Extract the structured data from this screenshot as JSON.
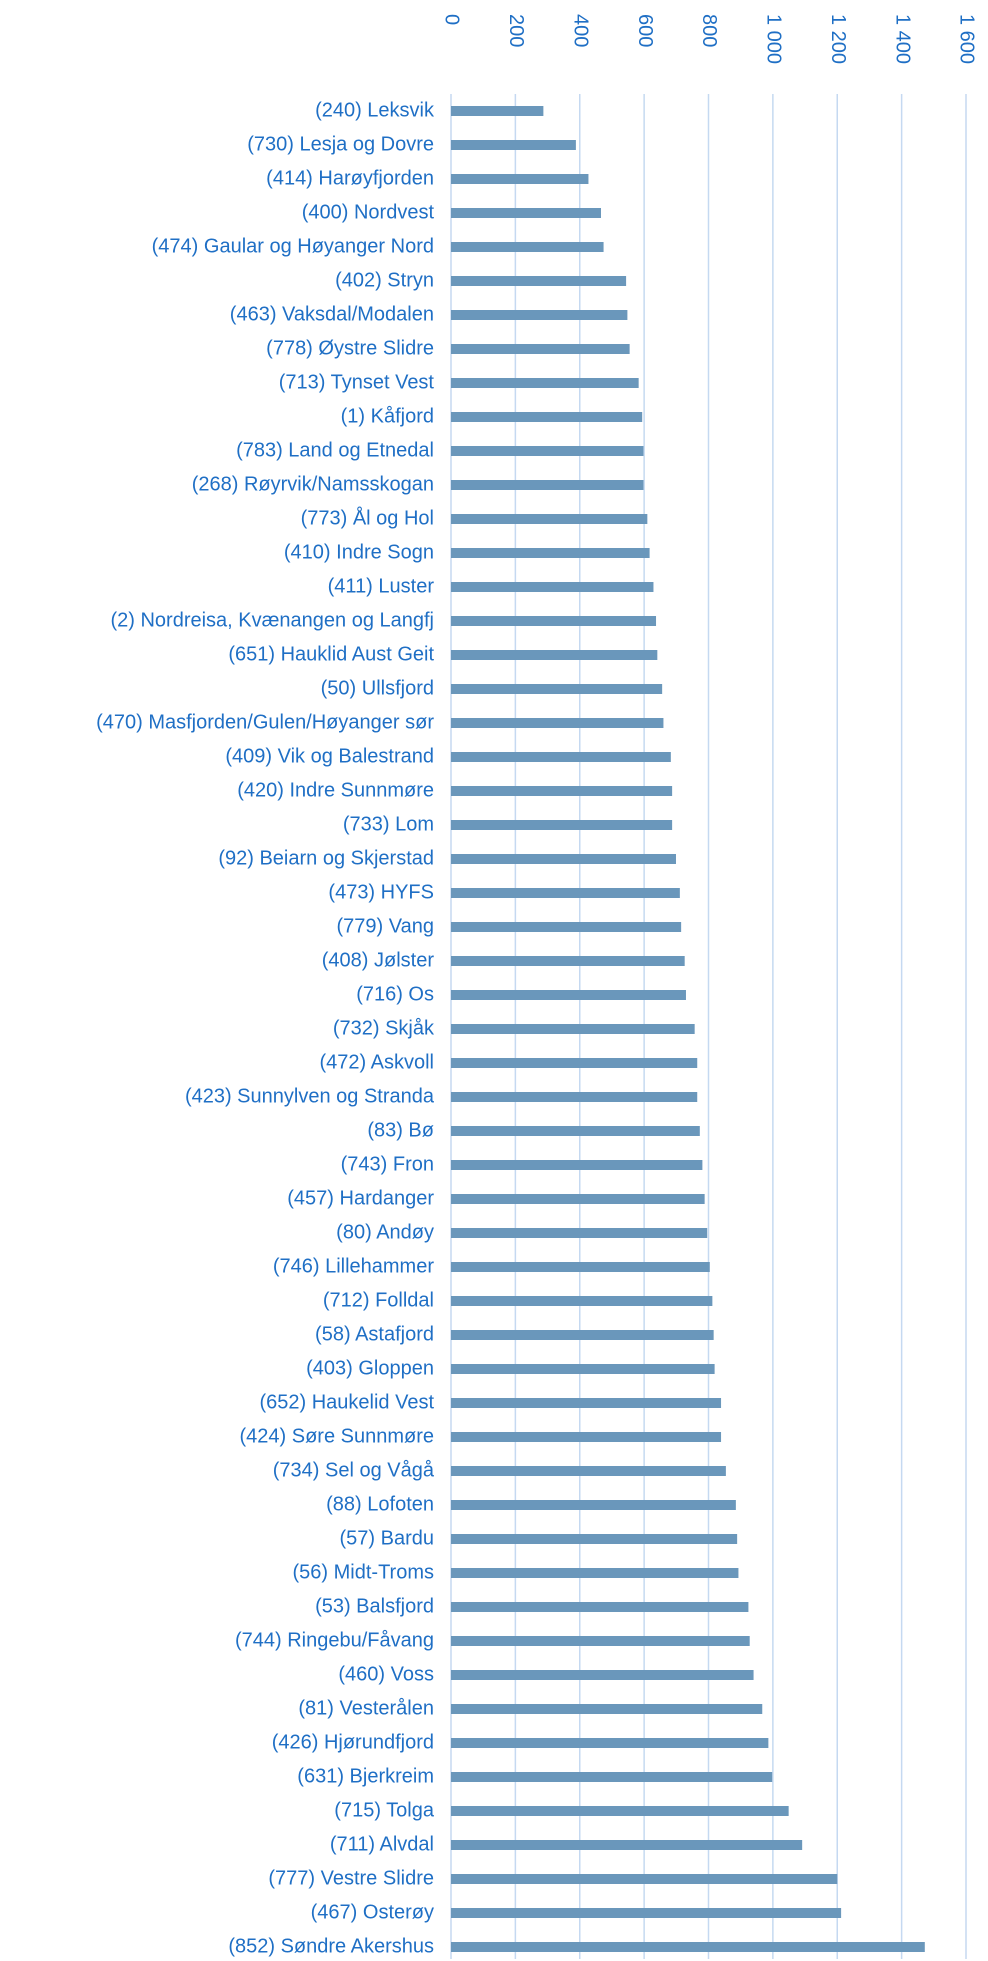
{
  "chart_data": {
    "type": "bar",
    "orientation": "horizontal",
    "categories": [
      "(240) Leksvik",
      "(730) Lesja og Dovre",
      "(414) Harøyfjorden",
      "(400) Nordvest",
      "(474) Gaular og Høyanger Nord",
      "(402) Stryn",
      "(463) Vaksdal/Modalen",
      "(778) Øystre Slidre",
      "(713) Tynset Vest",
      "(1) Kåfjord",
      "(783) Land og Etnedal",
      "(268) Røyrvik/Namsskogan",
      "(773) Ål og Hol",
      "(410) Indre Sogn",
      "(411) Luster",
      "(2) Nordreisa, Kvænangen og Langfj",
      "(651) Hauklid Aust Geit",
      "(50) Ullsfjord",
      "(470) Masfjorden/Gulen/Høyanger sør",
      "(409) Vik og Balestrand",
      "(420) Indre Sunnmøre",
      "(733) Lom",
      "(92) Beiarn og Skjerstad",
      "(473) HYFS",
      "(779) Vang",
      "(408) Jølster",
      "(716) Os",
      "(732) Skjåk",
      "(472) Askvoll",
      "(423) Sunnylven og Stranda",
      "(83) Bø",
      "(743) Fron",
      "(457) Hardanger",
      "(80) Andøy",
      "(746) Lillehammer",
      "(712) Folldal",
      "(58) Astafjord",
      "(403) Gloppen",
      "(652) Haukelid Vest",
      "(424) Søre Sunnmøre",
      "(734) Sel og Vågå",
      "(88) Lofoten",
      "(57) Bardu",
      "(56) Midt-Troms",
      "(53) Balsfjord",
      "(744) Ringebu/Fåvang",
      "(460) Voss",
      "(81) Vesterålen",
      "(426) Hjørundfjord",
      "(631) Bjerkreim",
      "(715) Tolga",
      "(711) Alvdal",
      "(777) Vestre Slidre",
      "(467) Osterøy",
      "(852) Søndre Akershus"
    ],
    "values": [
      287,
      388,
      427,
      466,
      474,
      544,
      548,
      555,
      583,
      594,
      598,
      598,
      610,
      617,
      629,
      637,
      641,
      656,
      660,
      683,
      687,
      687,
      699,
      711,
      715,
      726,
      730,
      757,
      765,
      765,
      773,
      781,
      788,
      796,
      804,
      812,
      816,
      819,
      839,
      839,
      854,
      885,
      889,
      893,
      924,
      928,
      940,
      967,
      986,
      998,
      1049,
      1091,
      1200,
      1212,
      1472
    ],
    "color": "#6a97bb",
    "xlim": [
      0,
      1600
    ],
    "xticks": [
      0,
      200,
      400,
      600,
      800,
      {
        "value": 1000,
        "label": "1 000"
      },
      {
        "value": 1200,
        "label": "1 200"
      },
      {
        "value": 1400,
        "label": "1 400"
      },
      {
        "value": 1600,
        "label": "1 600"
      }
    ],
    "grid": true
  }
}
